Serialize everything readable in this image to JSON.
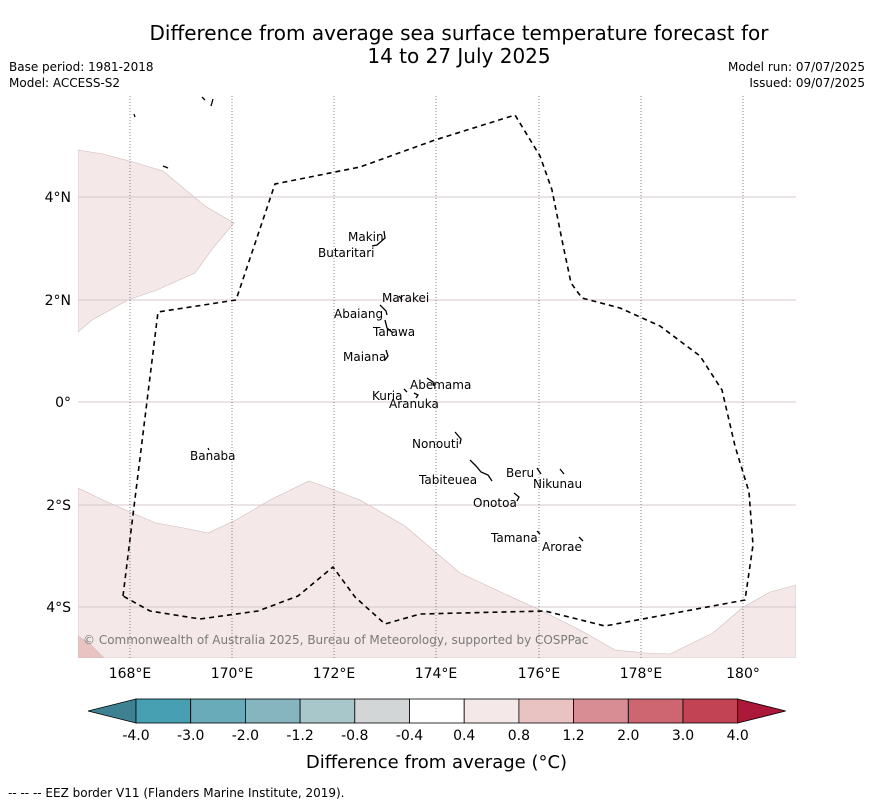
{
  "title_line1": "Difference from average sea surface temperature forecast for",
  "title_line2": "14 to 27 July 2025",
  "base_period": "Base period: 1981-2018",
  "model": "Model: ACCESS-S2",
  "model_run": "Model run: 07/07/2025",
  "issued": "Issued: 09/07/2025",
  "copyright": "© Commonwealth of Australia 2025, Bureau of Meteorology, supported by COSPPac",
  "lat_labels": [
    "4°N",
    "2°N",
    "0°",
    "2°S",
    "4°S"
  ],
  "lon_labels": [
    "168°E",
    "170°E",
    "172°E",
    "174°E",
    "176°E",
    "178°E",
    "180°"
  ],
  "islands": [
    "Makin",
    "Butaritari",
    "Marakei",
    "Abaiang",
    "Tarawa",
    "Maiana",
    "Abemama",
    "Kuria",
    "Aranuka",
    "Banaba",
    "Nonouti",
    "Tabiteuea",
    "Beru",
    "Nikunau",
    "Onotoa",
    "Tamana",
    "Arorae"
  ],
  "colorbar": {
    "title": "Difference from average (°C)",
    "tick_labels": [
      "-4.0",
      "-3.0",
      "-2.0",
      "-1.2",
      "-0.8",
      "-0.4",
      "0.4",
      "0.8",
      "1.2",
      "2.0",
      "3.0",
      "4.0"
    ],
    "colors": [
      "#3d8193",
      "#46a0b1",
      "#69abb8",
      "#86b5c0",
      "#a7c7cb",
      "#d2d6d6",
      "#ffffff",
      "#f4e8e8",
      "#e8c3c1",
      "#d88c93",
      "#cd6670",
      "#c24353",
      "#ab1839"
    ]
  },
  "map_colors": {
    "anomaly_0_4_to_0_8": "#f4e8e8",
    "anomaly_0_8_to_1_2": "#e8c3c1",
    "eez_border": "#000000",
    "grid": "#d6c8cc"
  },
  "legend_footnote": "--  --  -- EEZ border V11 (Flanders Marine Institute, 2019)."
}
